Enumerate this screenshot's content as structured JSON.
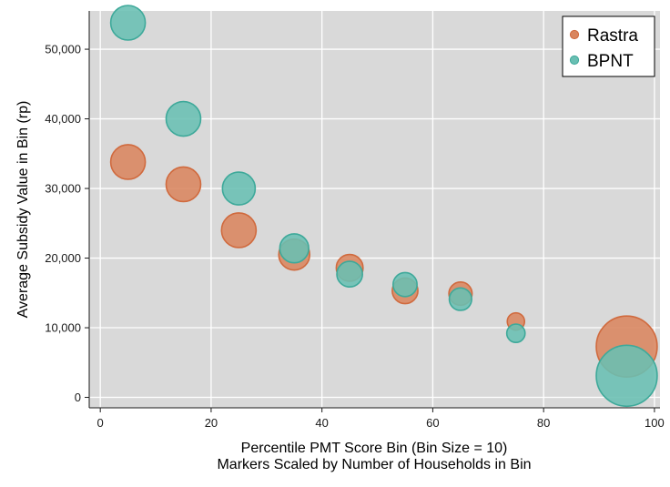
{
  "colors": {
    "plot_background": "#d9d9d9",
    "grid": "#ffffff",
    "rastra_fill": "#d9855e",
    "rastra_stroke": "#d06a3e",
    "bpnt_fill": "#69bfb3",
    "bpnt_stroke": "#3ea99a"
  },
  "chart_data": {
    "type": "scatter",
    "title": "",
    "xlabel": "Percentile PMT Score Bin (Bin Size = 10)",
    "xlabel_line2": "Markers Scaled by Number of Households in Bin",
    "ylabel": "Average Subsidy Value in Bin (rp)",
    "xlim": [
      -2,
      101
    ],
    "ylim": [
      -1500,
      55500
    ],
    "x_ticks": [
      0,
      20,
      40,
      60,
      80,
      100
    ],
    "x_tick_labels": [
      "0",
      "20",
      "40",
      "60",
      "80",
      "100"
    ],
    "y_ticks": [
      0,
      10000,
      20000,
      30000,
      40000,
      50000
    ],
    "y_tick_labels": [
      "0",
      "10,000",
      "20,000",
      "30,000",
      "40,000",
      "50,000"
    ],
    "grid": true,
    "legend_position": "top-right",
    "marker_size_relative": true,
    "series": [
      {
        "name": "Rastra",
        "x": [
          5,
          15,
          25,
          35,
          45,
          55,
          65,
          75,
          95
        ],
        "y": [
          33800,
          30600,
          24000,
          20500,
          18600,
          15300,
          14900,
          10900,
          7300
        ],
        "size": [
          1.0,
          1.0,
          1.0,
          0.8,
          0.6,
          0.55,
          0.45,
          0.25,
          3.1
        ]
      },
      {
        "name": "BPNT",
        "x": [
          5,
          15,
          25,
          35,
          45,
          55,
          65,
          75,
          95
        ],
        "y": [
          53800,
          40000,
          30000,
          21400,
          17700,
          16200,
          14100,
          9200,
          3100
        ],
        "size": [
          1.0,
          1.0,
          0.9,
          0.7,
          0.55,
          0.48,
          0.42,
          0.28,
          3.1
        ]
      }
    ]
  }
}
